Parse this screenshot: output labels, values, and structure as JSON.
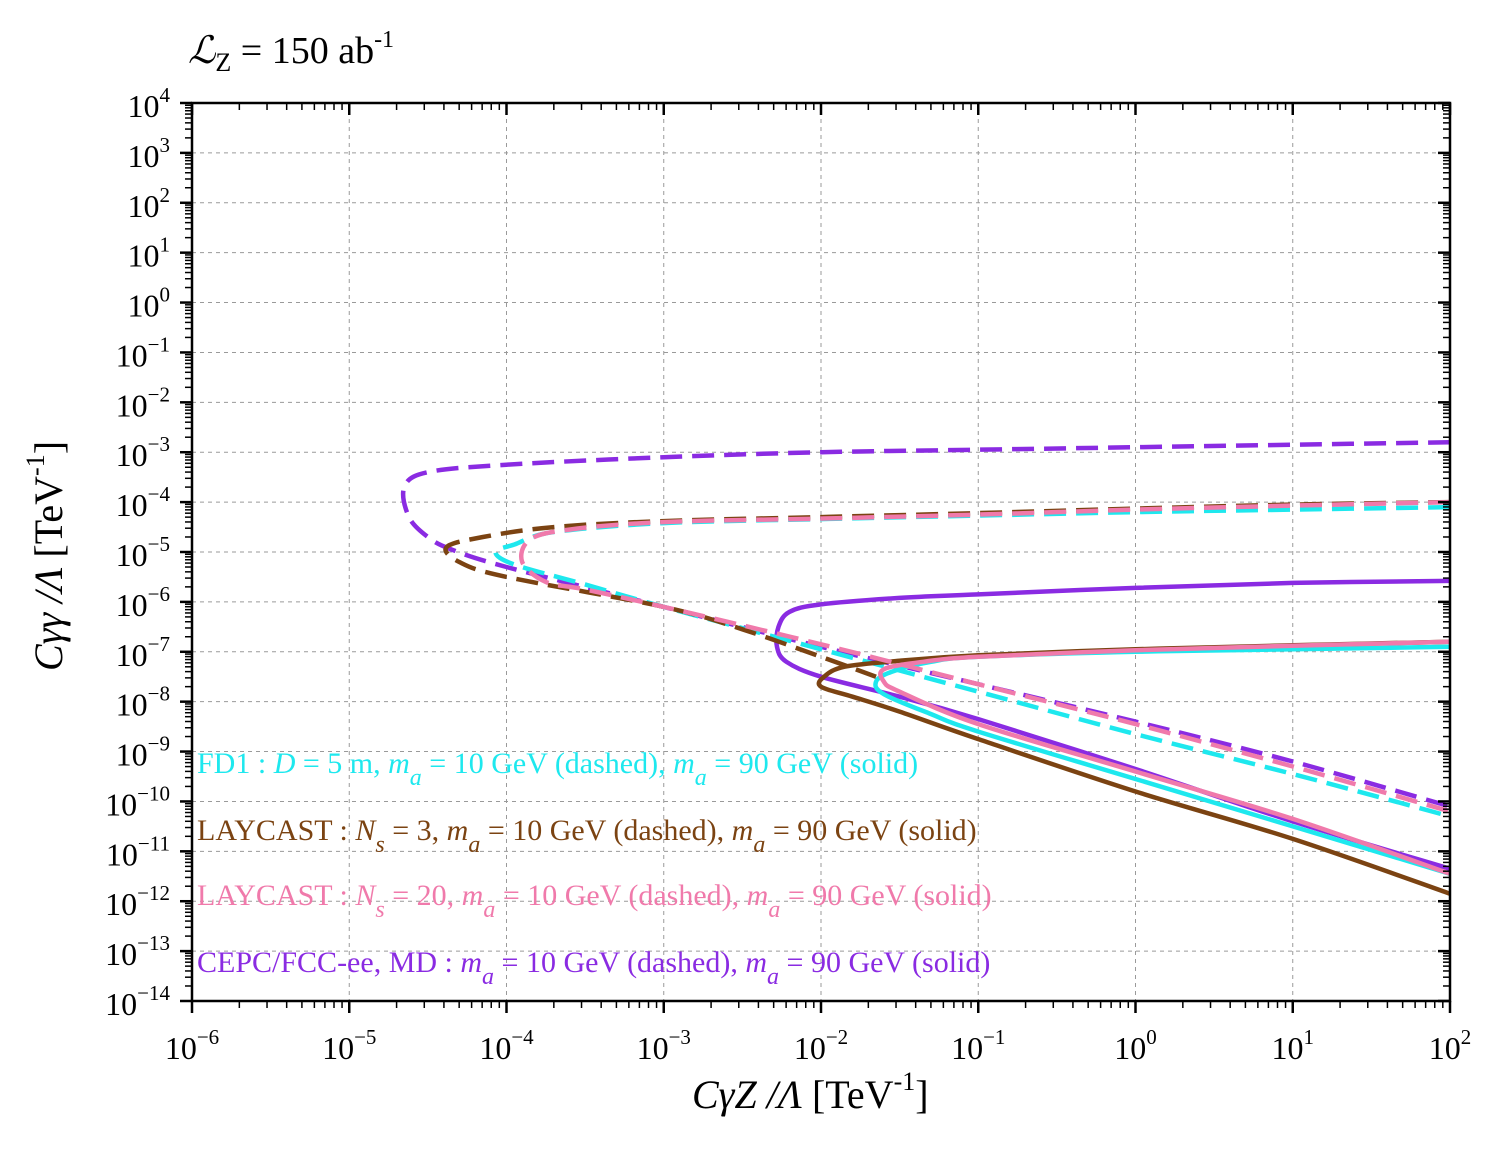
{
  "chart_data": {
    "type": "line",
    "title": {
      "symbol": "ℒ",
      "subscript": "Z",
      "text": " = 150 ab",
      "superscript": "-1"
    },
    "xlabel": {
      "main": "CγZ /Λ",
      "unit": " [TeV",
      "exp": "-1",
      "close": "]"
    },
    "ylabel": {
      "main": "Cγγ /Λ",
      "unit": " [TeV",
      "exp": "-1",
      "close": "]"
    },
    "xscale": "log",
    "yscale": "log",
    "xlim_exp": [
      -6,
      2
    ],
    "ylim_exp": [
      -14,
      4
    ],
    "x_ticks": [
      -6,
      -5,
      -4,
      -3,
      -2,
      -1,
      0,
      1,
      2
    ],
    "y_ticks": [
      -14,
      -13,
      -12,
      -11,
      -10,
      -9,
      -8,
      -7,
      -6,
      -5,
      -4,
      -3,
      -2,
      -1,
      0,
      1,
      2,
      3,
      4
    ],
    "grid": true,
    "colors": {
      "fd1": "#1ee8ee",
      "laycast3": "#7b4312",
      "laycast20": "#f07aab",
      "cepc": "#8a2be2"
    },
    "legend": [
      {
        "key": "fd1",
        "color": "#1ee8ee",
        "parts": [
          "FD1 : ",
          "D",
          " = 5 m, ",
          "m",
          "a",
          " = 10 GeV (dashed), ",
          "m",
          "a",
          " = 90 GeV (solid)"
        ]
      },
      {
        "key": "laycast3",
        "color": "#7b4312",
        "parts": [
          "LAYCAST : ",
          "N",
          "S",
          " = 3, ",
          "m",
          "a",
          " = 10 GeV (dashed), ",
          "m",
          "a",
          " = 90 GeV (solid)"
        ]
      },
      {
        "key": "laycast20",
        "color": "#f07aab",
        "parts": [
          "LAYCAST : ",
          "N",
          "S",
          " = 20, ",
          "m",
          "a",
          " = 10 GeV (dashed), ",
          "m",
          "a",
          " = 90 GeV (solid)"
        ]
      },
      {
        "key": "cepc",
        "color": "#8a2be2",
        "parts": [
          "CEPC/FCC-ee, MD : ",
          "m",
          "a",
          " = 10 GeV (dashed),  ",
          "m",
          "a",
          " = 90 GeV (solid)"
        ]
      }
    ],
    "series": [
      {
        "name": "CEPC/FCC-ee, MD dashed (m_a = 10 GeV)",
        "color": "#8a2be2",
        "style": "dashed",
        "points_log10": [
          [
            2,
            -2.8
          ],
          [
            1,
            -2.85
          ],
          [
            0,
            -2.9
          ],
          [
            -1,
            -2.95
          ],
          [
            -2,
            -3
          ],
          [
            -3,
            -3.1
          ],
          [
            -4,
            -3.25
          ],
          [
            -4.5,
            -3.4
          ],
          [
            -4.65,
            -3.7
          ],
          [
            -4.62,
            -4.3
          ],
          [
            -4.5,
            -4.7
          ],
          [
            -4.35,
            -4.95
          ],
          [
            -4,
            -5.3
          ],
          [
            -3,
            -6.1
          ],
          [
            -2,
            -6.9
          ],
          [
            -1,
            -7.65
          ],
          [
            0,
            -8.4
          ],
          [
            1,
            -9.2
          ],
          [
            2,
            -10.1
          ]
        ]
      },
      {
        "name": "CEPC/FCC-ee, MD solid (m_a = 90 GeV)",
        "color": "#8a2be2",
        "style": "solid",
        "points_log10": [
          [
            2,
            -5.58
          ],
          [
            1,
            -5.62
          ],
          [
            0,
            -5.72
          ],
          [
            -1,
            -5.85
          ],
          [
            -1.5,
            -5.92
          ],
          [
            -2,
            -6.05
          ],
          [
            -2.2,
            -6.2
          ],
          [
            -2.27,
            -6.5
          ],
          [
            -2.28,
            -6.9
          ],
          [
            -2.22,
            -7.2
          ],
          [
            -2,
            -7.5
          ],
          [
            -1.5,
            -7.9
          ],
          [
            -1,
            -8.35
          ],
          [
            0,
            -9.35
          ],
          [
            1,
            -10.4
          ],
          [
            2,
            -11.35
          ]
        ]
      },
      {
        "name": "FD1 dashed (m_a = 10 GeV)",
        "color": "#1ee8ee",
        "style": "dashed",
        "points_log10": [
          [
            2,
            -4.1
          ],
          [
            1,
            -4.15
          ],
          [
            0,
            -4.2
          ],
          [
            -1,
            -4.27
          ],
          [
            -2,
            -4.34
          ],
          [
            -3,
            -4.42
          ],
          [
            -3.7,
            -4.6
          ],
          [
            -3.95,
            -4.85
          ],
          [
            -4.07,
            -5
          ],
          [
            -3.95,
            -5.25
          ],
          [
            -3.5,
            -5.65
          ],
          [
            -3,
            -6.1
          ],
          [
            -2,
            -6.95
          ],
          [
            -1,
            -7.8
          ],
          [
            0,
            -8.65
          ],
          [
            1,
            -9.45
          ],
          [
            2,
            -10.3
          ]
        ]
      },
      {
        "name": "FD1 solid (m_a = 90 GeV)",
        "color": "#1ee8ee",
        "style": "solid",
        "points_log10": [
          [
            2,
            -6.9
          ],
          [
            1,
            -6.95
          ],
          [
            0,
            -7
          ],
          [
            -1,
            -7.1
          ],
          [
            -1.3,
            -7.2
          ],
          [
            -1.55,
            -7.4
          ],
          [
            -1.65,
            -7.6
          ],
          [
            -1.6,
            -7.85
          ],
          [
            -1.3,
            -8.25
          ],
          [
            -1,
            -8.6
          ],
          [
            0,
            -9.55
          ],
          [
            1,
            -10.5
          ],
          [
            2,
            -11.45
          ]
        ]
      },
      {
        "name": "LAYCAST N_S = 3 dashed (m_a = 10 GeV)",
        "color": "#7b4312",
        "style": "dashed",
        "points_log10": [
          [
            2,
            -4.0
          ],
          [
            1,
            -4.05
          ],
          [
            0,
            -4.13
          ],
          [
            -1,
            -4.22
          ],
          [
            -2,
            -4.3
          ],
          [
            -3,
            -4.38
          ],
          [
            -3.7,
            -4.5
          ],
          [
            -4.15,
            -4.7
          ],
          [
            -4.38,
            -4.9
          ],
          [
            -4.3,
            -5.2
          ],
          [
            -4,
            -5.5
          ],
          [
            -3,
            -6.1
          ],
          [
            -2.5,
            -6.55
          ],
          [
            -2,
            -7.1
          ],
          [
            -1.65,
            -7.5
          ]
        ]
      },
      {
        "name": "LAYCAST N_S = 3 solid (m_a = 90 GeV)",
        "color": "#7b4312",
        "style": "solid",
        "points_log10": [
          [
            2,
            -6.8
          ],
          [
            1,
            -6.87
          ],
          [
            0,
            -6.95
          ],
          [
            -1,
            -7.07
          ],
          [
            -1.5,
            -7.18
          ],
          [
            -1.85,
            -7.3
          ],
          [
            -1.98,
            -7.5
          ],
          [
            -2.0,
            -7.7
          ],
          [
            -1.8,
            -7.9
          ],
          [
            -1.5,
            -8.2
          ],
          [
            -1,
            -8.75
          ],
          [
            0,
            -9.8
          ],
          [
            1,
            -10.75
          ],
          [
            2,
            -11.85
          ]
        ]
      },
      {
        "name": "LAYCAST N_S = 20 dashed (m_a = 10 GeV)",
        "color": "#f07aab",
        "style": "dashed",
        "points_log10": [
          [
            2,
            -4.0
          ],
          [
            1,
            -4.07
          ],
          [
            0,
            -4.15
          ],
          [
            -1,
            -4.25
          ],
          [
            -2,
            -4.33
          ],
          [
            -3,
            -4.4
          ],
          [
            -3.6,
            -4.55
          ],
          [
            -3.85,
            -4.75
          ],
          [
            -3.9,
            -5.2
          ],
          [
            -3.75,
            -5.6
          ],
          [
            -3.5,
            -5.75
          ],
          [
            -3,
            -6.1
          ],
          [
            -2,
            -6.85
          ],
          [
            -1,
            -7.65
          ],
          [
            0,
            -8.45
          ],
          [
            1,
            -9.3
          ],
          [
            2,
            -10.2
          ]
        ]
      },
      {
        "name": "LAYCAST N_S = 20 solid (m_a = 90 GeV)",
        "color": "#f07aab",
        "style": "solid",
        "points_log10": [
          [
            2,
            -6.8
          ],
          [
            1,
            -6.88
          ],
          [
            0,
            -6.97
          ],
          [
            -1,
            -7.1
          ],
          [
            -1.35,
            -7.2
          ],
          [
            -1.6,
            -7.35
          ],
          [
            -1.6,
            -7.6
          ],
          [
            -1.5,
            -7.8
          ],
          [
            -1,
            -8.45
          ],
          [
            0,
            -9.4
          ],
          [
            1,
            -10.35
          ],
          [
            2,
            -11.45
          ]
        ]
      }
    ]
  }
}
